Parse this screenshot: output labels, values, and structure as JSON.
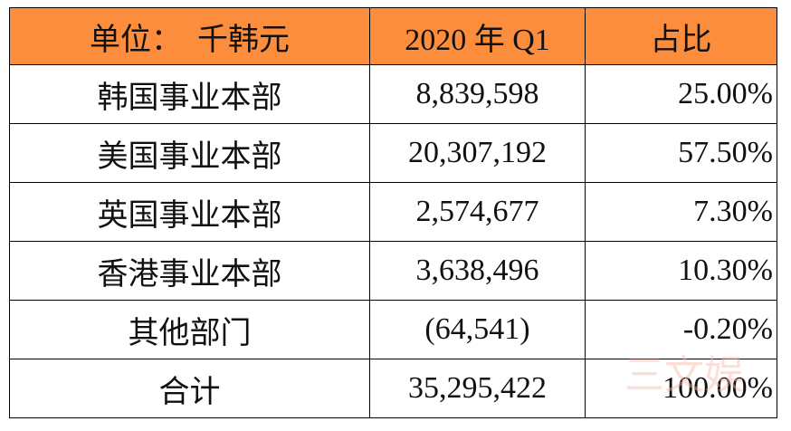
{
  "table": {
    "header": [
      "单位：  千韩元",
      "2020 年 Q1",
      "占比"
    ],
    "rows": [
      [
        "韩国事业本部",
        "8,839,598",
        "25.00%"
      ],
      [
        "美国事业本部",
        "20,307,192",
        "57.50%"
      ],
      [
        "英国事业本部",
        "2,574,677",
        "7.30%"
      ],
      [
        "香港事业本部",
        "3,638,496",
        "10.30%"
      ],
      [
        "其他部门",
        "(64,541)",
        "-0.20%"
      ],
      [
        "合计",
        "35,295,422",
        "100.00%"
      ]
    ]
  },
  "watermark": "三文娱"
}
